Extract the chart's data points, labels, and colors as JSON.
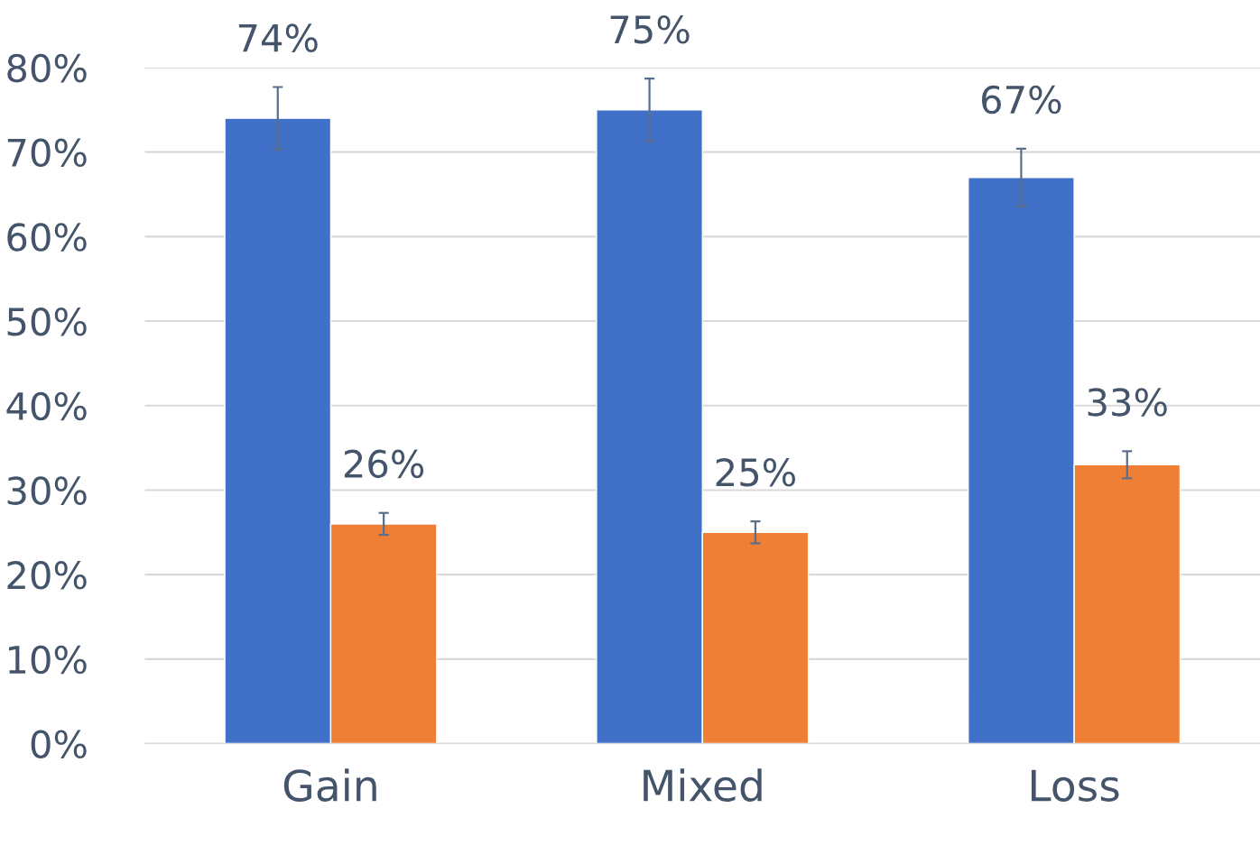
{
  "chart_data": {
    "type": "bar",
    "categories": [
      "Gain",
      "Mixed",
      "Loss"
    ],
    "series": [
      {
        "color": "#4170c8",
        "values": [
          74,
          75,
          67
        ],
        "errors": [
          3.7,
          3.7,
          3.4
        ],
        "value_labels": [
          "74%",
          "75%",
          "67%"
        ]
      },
      {
        "color": "#ee7f35",
        "values": [
          26,
          25,
          33
        ],
        "errors": [
          1.3,
          1.3,
          1.6
        ],
        "value_labels": [
          "26%",
          "25%",
          "33%"
        ]
      }
    ],
    "ylim": [
      0,
      80
    ],
    "yticks": [
      {
        "value": 0,
        "label": "0%"
      },
      {
        "value": 10,
        "label": "10%"
      },
      {
        "value": 20,
        "label": "20%"
      },
      {
        "value": 30,
        "label": "30%"
      },
      {
        "value": 40,
        "label": "40%"
      },
      {
        "value": 50,
        "label": "50%"
      },
      {
        "value": 60,
        "label": "60%"
      },
      {
        "value": 70,
        "label": "70%"
      },
      {
        "value": 80,
        "label": "80%"
      }
    ],
    "grid": "y",
    "legend": false
  }
}
